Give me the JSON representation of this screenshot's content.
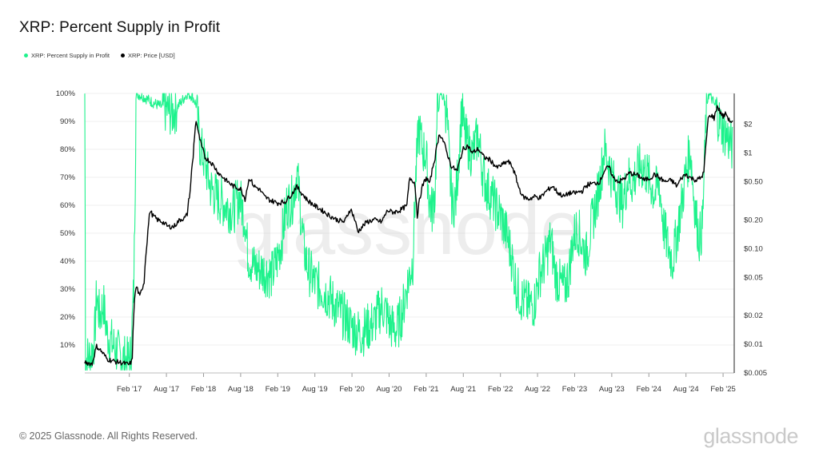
{
  "chart_data": {
    "type": "line",
    "title": "XRP: Percent Supply in Profit",
    "legend": [
      {
        "name": "XRP: Percent Supply in Profit",
        "color": "#1ef28c"
      },
      {
        "name": "XRP: Price [USD]",
        "color": "#000000"
      }
    ],
    "x_ticks": [
      "Feb '17",
      "Aug '17",
      "Feb '18",
      "Aug '18",
      "Feb '19",
      "Aug '19",
      "Feb '20",
      "Aug '20",
      "Feb '21",
      "Aug '21",
      "Feb '22",
      "Aug '22",
      "Feb '23",
      "Aug '23",
      "Feb '24",
      "Aug '24",
      "Feb '25"
    ],
    "y_left_ticks": [
      "10%",
      "20%",
      "30%",
      "40%",
      "50%",
      "60%",
      "70%",
      "80%",
      "90%",
      "100%"
    ],
    "y_left_range": [
      0,
      100
    ],
    "y_right_ticks": [
      "$0.005",
      "$0.01",
      "$0.02",
      "$0.05",
      "$0.10",
      "$0.20",
      "$0.50",
      "$1",
      "$2"
    ],
    "y_right_values": [
      0.005,
      0.01,
      0.02,
      0.05,
      0.1,
      0.2,
      0.5,
      1,
      2
    ],
    "y_right_range": [
      0.005,
      4.2
    ],
    "y_right_scale": "log",
    "x_range": [
      2016.5,
      2025.25
    ],
    "series": [
      {
        "name": "XRP: Percent Supply in Profit",
        "color": "#1ef28c",
        "points": [
          [
            2016.5,
            100
          ],
          [
            2016.51,
            5
          ],
          [
            2016.58,
            6
          ],
          [
            2016.63,
            12
          ],
          [
            2016.66,
            28
          ],
          [
            2016.7,
            20
          ],
          [
            2016.75,
            25
          ],
          [
            2016.8,
            14
          ],
          [
            2016.88,
            10
          ],
          [
            2016.95,
            7
          ],
          [
            2017.03,
            5
          ],
          [
            2017.08,
            4
          ],
          [
            2017.12,
            6
          ],
          [
            2017.16,
            30
          ],
          [
            2017.18,
            70
          ],
          [
            2017.19,
            100
          ],
          [
            2017.28,
            99
          ],
          [
            2017.4,
            97
          ],
          [
            2017.55,
            95
          ],
          [
            2017.68,
            93
          ],
          [
            2017.8,
            97
          ],
          [
            2017.88,
            100
          ],
          [
            2017.95,
            99
          ],
          [
            2018.0,
            96
          ],
          [
            2018.05,
            82
          ],
          [
            2018.12,
            75
          ],
          [
            2018.2,
            66
          ],
          [
            2018.3,
            62
          ],
          [
            2018.4,
            60
          ],
          [
            2018.5,
            58
          ],
          [
            2018.58,
            63
          ],
          [
            2018.66,
            55
          ],
          [
            2018.7,
            42
          ],
          [
            2018.78,
            38
          ],
          [
            2018.86,
            37
          ],
          [
            2018.95,
            36
          ],
          [
            2019.02,
            35
          ],
          [
            2019.08,
            39
          ],
          [
            2019.15,
            47
          ],
          [
            2019.22,
            60
          ],
          [
            2019.3,
            62
          ],
          [
            2019.36,
            72
          ],
          [
            2019.4,
            60
          ],
          [
            2019.45,
            45
          ],
          [
            2019.5,
            38
          ],
          [
            2019.6,
            32
          ],
          [
            2019.7,
            30
          ],
          [
            2019.8,
            27
          ],
          [
            2019.9,
            23
          ],
          [
            2020.0,
            20
          ],
          [
            2020.08,
            17
          ],
          [
            2020.16,
            15
          ],
          [
            2020.22,
            14
          ],
          [
            2020.3,
            16
          ],
          [
            2020.4,
            18
          ],
          [
            2020.5,
            24
          ],
          [
            2020.55,
            22
          ],
          [
            2020.62,
            17
          ],
          [
            2020.7,
            15
          ],
          [
            2020.78,
            22
          ],
          [
            2020.85,
            32
          ],
          [
            2020.92,
            40
          ],
          [
            2020.96,
            70
          ],
          [
            2021.0,
            88
          ],
          [
            2021.05,
            80
          ],
          [
            2021.1,
            78
          ],
          [
            2021.14,
            62
          ],
          [
            2021.18,
            58
          ],
          [
            2021.22,
            65
          ],
          [
            2021.25,
            93
          ],
          [
            2021.3,
            100
          ],
          [
            2021.34,
            98
          ],
          [
            2021.38,
            92
          ],
          [
            2021.42,
            70
          ],
          [
            2021.45,
            60
          ],
          [
            2021.5,
            62
          ],
          [
            2021.54,
            78
          ],
          [
            2021.58,
            95
          ],
          [
            2021.62,
            85
          ],
          [
            2021.66,
            82
          ],
          [
            2021.72,
            78
          ],
          [
            2021.8,
            85
          ],
          [
            2021.86,
            72
          ],
          [
            2021.92,
            66
          ],
          [
            2022.0,
            62
          ],
          [
            2022.06,
            58
          ],
          [
            2022.12,
            55
          ],
          [
            2022.2,
            48
          ],
          [
            2022.26,
            40
          ],
          [
            2022.32,
            30
          ],
          [
            2022.4,
            26
          ],
          [
            2022.48,
            24
          ],
          [
            2022.56,
            25
          ],
          [
            2022.62,
            35
          ],
          [
            2022.7,
            40
          ],
          [
            2022.78,
            48
          ],
          [
            2022.84,
            35
          ],
          [
            2022.9,
            32
          ],
          [
            2022.96,
            30
          ],
          [
            2023.02,
            35
          ],
          [
            2023.08,
            48
          ],
          [
            2023.14,
            52
          ],
          [
            2023.2,
            46
          ],
          [
            2023.26,
            42
          ],
          [
            2023.32,
            52
          ],
          [
            2023.4,
            62
          ],
          [
            2023.46,
            72
          ],
          [
            2023.5,
            80
          ],
          [
            2023.56,
            75
          ],
          [
            2023.62,
            68
          ],
          [
            2023.68,
            65
          ],
          [
            2023.74,
            60
          ],
          [
            2023.82,
            70
          ],
          [
            2023.88,
            68
          ],
          [
            2023.94,
            72
          ],
          [
            2024.0,
            74
          ],
          [
            2024.06,
            72
          ],
          [
            2024.12,
            68
          ],
          [
            2024.18,
            64
          ],
          [
            2024.24,
            68
          ],
          [
            2024.3,
            52
          ],
          [
            2024.36,
            45
          ],
          [
            2024.42,
            40
          ],
          [
            2024.48,
            50
          ],
          [
            2024.54,
            60
          ],
          [
            2024.6,
            72
          ],
          [
            2024.66,
            80
          ],
          [
            2024.7,
            65
          ],
          [
            2024.74,
            55
          ],
          [
            2024.78,
            48
          ],
          [
            2024.82,
            52
          ],
          [
            2024.85,
            75
          ],
          [
            2024.87,
            92
          ],
          [
            2024.9,
            100
          ],
          [
            2024.95,
            98
          ],
          [
            2025.0,
            95
          ],
          [
            2025.05,
            90
          ],
          [
            2025.1,
            87
          ],
          [
            2025.15,
            85
          ],
          [
            2025.2,
            82
          ],
          [
            2025.23,
            80
          ]
        ]
      },
      {
        "name": "XRP: Price [USD]",
        "color": "#000000",
        "points": [
          [
            2016.5,
            0.0065
          ],
          [
            2016.6,
            0.0062
          ],
          [
            2016.66,
            0.0095
          ],
          [
            2016.72,
            0.0085
          ],
          [
            2016.8,
            0.007
          ],
          [
            2016.9,
            0.0066
          ],
          [
            2017.0,
            0.0064
          ],
          [
            2017.1,
            0.0061
          ],
          [
            2017.14,
            0.0068
          ],
          [
            2017.18,
            0.035
          ],
          [
            2017.2,
            0.04
          ],
          [
            2017.24,
            0.031
          ],
          [
            2017.3,
            0.045
          ],
          [
            2017.34,
            0.12
          ],
          [
            2017.38,
            0.25
          ],
          [
            2017.42,
            0.22
          ],
          [
            2017.48,
            0.2
          ],
          [
            2017.55,
            0.19
          ],
          [
            2017.62,
            0.17
          ],
          [
            2017.7,
            0.17
          ],
          [
            2017.78,
            0.2
          ],
          [
            2017.85,
            0.21
          ],
          [
            2017.88,
            0.23
          ],
          [
            2017.92,
            0.4
          ],
          [
            2017.96,
            0.9
          ],
          [
            2018.0,
            2.2
          ],
          [
            2018.03,
            1.6
          ],
          [
            2018.07,
            1.2
          ],
          [
            2018.12,
            0.9
          ],
          [
            2018.2,
            0.8
          ],
          [
            2018.3,
            0.62
          ],
          [
            2018.4,
            0.52
          ],
          [
            2018.5,
            0.45
          ],
          [
            2018.6,
            0.42
          ],
          [
            2018.66,
            0.33
          ],
          [
            2018.72,
            0.55
          ],
          [
            2018.78,
            0.45
          ],
          [
            2018.85,
            0.42
          ],
          [
            2018.92,
            0.35
          ],
          [
            2019.0,
            0.32
          ],
          [
            2019.1,
            0.3
          ],
          [
            2019.2,
            0.31
          ],
          [
            2019.3,
            0.38
          ],
          [
            2019.35,
            0.45
          ],
          [
            2019.4,
            0.4
          ],
          [
            2019.5,
            0.32
          ],
          [
            2019.6,
            0.28
          ],
          [
            2019.7,
            0.25
          ],
          [
            2019.8,
            0.22
          ],
          [
            2019.9,
            0.2
          ],
          [
            2020.0,
            0.19
          ],
          [
            2020.08,
            0.26
          ],
          [
            2020.12,
            0.22
          ],
          [
            2020.18,
            0.15
          ],
          [
            2020.24,
            0.17
          ],
          [
            2020.3,
            0.19
          ],
          [
            2020.4,
            0.2
          ],
          [
            2020.5,
            0.19
          ],
          [
            2020.58,
            0.25
          ],
          [
            2020.66,
            0.24
          ],
          [
            2020.74,
            0.25
          ],
          [
            2020.84,
            0.28
          ],
          [
            2020.88,
            0.55
          ],
          [
            2020.94,
            0.5
          ],
          [
            2020.98,
            0.22
          ],
          [
            2021.05,
            0.45
          ],
          [
            2021.1,
            0.55
          ],
          [
            2021.15,
            0.48
          ],
          [
            2021.22,
            0.9
          ],
          [
            2021.28,
            1.6
          ],
          [
            2021.32,
            1.4
          ],
          [
            2021.38,
            1.0
          ],
          [
            2021.44,
            0.72
          ],
          [
            2021.52,
            0.65
          ],
          [
            2021.6,
            1.1
          ],
          [
            2021.66,
            1.2
          ],
          [
            2021.72,
            1.0
          ],
          [
            2021.8,
            1.1
          ],
          [
            2021.88,
            0.9
          ],
          [
            2021.96,
            0.85
          ],
          [
            2022.05,
            0.7
          ],
          [
            2022.12,
            0.75
          ],
          [
            2022.2,
            0.82
          ],
          [
            2022.26,
            0.72
          ],
          [
            2022.34,
            0.45
          ],
          [
            2022.4,
            0.35
          ],
          [
            2022.48,
            0.33
          ],
          [
            2022.56,
            0.35
          ],
          [
            2022.64,
            0.34
          ],
          [
            2022.72,
            0.4
          ],
          [
            2022.8,
            0.45
          ],
          [
            2022.88,
            0.38
          ],
          [
            2022.96,
            0.35
          ],
          [
            2023.02,
            0.38
          ],
          [
            2023.1,
            0.38
          ],
          [
            2023.2,
            0.4
          ],
          [
            2023.28,
            0.47
          ],
          [
            2023.36,
            0.48
          ],
          [
            2023.44,
            0.5
          ],
          [
            2023.5,
            0.65
          ],
          [
            2023.56,
            0.72
          ],
          [
            2023.62,
            0.55
          ],
          [
            2023.7,
            0.5
          ],
          [
            2023.78,
            0.55
          ],
          [
            2023.84,
            0.62
          ],
          [
            2023.9,
            0.6
          ],
          [
            2023.96,
            0.58
          ],
          [
            2024.04,
            0.52
          ],
          [
            2024.12,
            0.55
          ],
          [
            2024.18,
            0.6
          ],
          [
            2024.24,
            0.55
          ],
          [
            2024.32,
            0.5
          ],
          [
            2024.4,
            0.52
          ],
          [
            2024.48,
            0.45
          ],
          [
            2024.54,
            0.55
          ],
          [
            2024.6,
            0.6
          ],
          [
            2024.66,
            0.55
          ],
          [
            2024.74,
            0.52
          ],
          [
            2024.8,
            0.55
          ],
          [
            2024.84,
            0.62
          ],
          [
            2024.87,
            1.2
          ],
          [
            2024.9,
            2.3
          ],
          [
            2024.94,
            2.5
          ],
          [
            2024.98,
            2.3
          ],
          [
            2025.02,
            3.1
          ],
          [
            2025.06,
            2.7
          ],
          [
            2025.1,
            2.4
          ],
          [
            2025.14,
            2.6
          ],
          [
            2025.18,
            2.2
          ],
          [
            2025.23,
            2.1
          ]
        ]
      }
    ]
  },
  "footer": {
    "copyright": "© 2025 Glassnode. All Rights Reserved.",
    "brand": "glassnode",
    "watermark": "glassnode"
  }
}
